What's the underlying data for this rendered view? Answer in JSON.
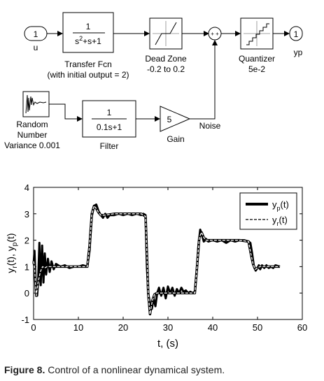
{
  "diagram": {
    "blocks": {
      "inport": {
        "number": "1",
        "label": "u"
      },
      "transfer_fcn": {
        "numerator": "1",
        "denominator": "s",
        "denominator_exp": "2",
        "denominator_rest": "+s+1",
        "label_line1": "Transfer Fcn",
        "label_line2": "(with initial output = 2)"
      },
      "dead_zone": {
        "label_line1": "Dead Zone",
        "label_line2": "-0.2 to 0.2"
      },
      "sum": {
        "signs": "+ +"
      },
      "quantizer": {
        "label_line1": "Quantizer",
        "label_line2": "5e-2"
      },
      "outport": {
        "number": "1",
        "label": "yp"
      },
      "random_number": {
        "label_line1": "Random",
        "label_line2": "Number",
        "label_line3": "Variance 0.001"
      },
      "filter": {
        "numerator": "1",
        "denominator": "0.1s+1",
        "label": "Filter"
      },
      "gain": {
        "value": "5",
        "label": "Gain"
      },
      "noise_label": "Noise"
    }
  },
  "chart_data": {
    "type": "line",
    "xlabel": "t, (s)",
    "ylabel": "y_r(t), y_p(t)",
    "xlim": [
      0,
      60
    ],
    "ylim": [
      -1,
      4
    ],
    "xticks": [
      "0",
      "10",
      "20",
      "30",
      "40",
      "50",
      "60"
    ],
    "yticks": [
      "-1",
      "0",
      "1",
      "2",
      "3",
      "4"
    ],
    "grid": false,
    "legend": "top-right",
    "series": [
      {
        "name": "y_p(t)",
        "style": "solid-thick",
        "x": [
          0,
          0.2,
          0.5,
          0.8,
          1.0,
          1.3,
          1.6,
          1.9,
          2.2,
          2.5,
          2.8,
          3.2,
          3.6,
          4.0,
          4.5,
          5,
          6,
          7,
          8,
          9,
          10,
          11,
          12,
          12.5,
          13,
          13.5,
          14,
          14.5,
          15,
          15.5,
          16,
          16.5,
          17,
          18,
          19,
          20,
          21,
          22,
          23,
          24,
          24.5,
          25,
          25.3,
          25.6,
          26,
          26.4,
          26.8,
          27.2,
          27.6,
          28,
          28.5,
          29,
          29.5,
          30,
          30.5,
          31,
          31.5,
          32,
          32.5,
          33,
          33.5,
          34,
          34.5,
          35,
          35.5,
          36,
          36.4,
          36.8,
          37.2,
          37.6,
          38,
          38.5,
          39,
          40,
          41,
          42,
          43,
          44,
          45,
          46,
          47,
          48,
          48.4,
          48.8,
          49.2,
          49.6,
          50,
          50.3,
          50.6,
          51,
          51.5,
          52,
          52.5,
          53,
          53.5,
          54,
          55
        ],
        "values": [
          1.1,
          1.6,
          0.2,
          -0.1,
          0.4,
          1.9,
          0.3,
          1.8,
          0.4,
          1.5,
          0.7,
          1.3,
          0.8,
          1.2,
          0.9,
          1.1,
          1.0,
          1.05,
          0.95,
          1.0,
          1.0,
          1.05,
          1.0,
          1.6,
          2.9,
          3.3,
          3.35,
          3.1,
          2.95,
          2.85,
          3.0,
          2.85,
          2.95,
          2.95,
          3.0,
          2.95,
          3.0,
          2.95,
          3.0,
          2.95,
          3.0,
          2.95,
          1.0,
          0.0,
          -0.4,
          -0.6,
          -0.2,
          -0.5,
          0.0,
          0.2,
          -0.1,
          0.2,
          -0.2,
          0.25,
          0.0,
          0.2,
          -0.1,
          0.15,
          0.0,
          0.2,
          0.05,
          0.1,
          0.0,
          0.05,
          0.0,
          0.05,
          0.8,
          1.8,
          2.4,
          2.2,
          1.95,
          2.05,
          1.95,
          2.0,
          1.95,
          2.0,
          1.9,
          2.0,
          1.95,
          2.0,
          2.0,
          1.95,
          1.9,
          1.5,
          1.0,
          0.85,
          0.95,
          1.05,
          0.9,
          1.05,
          0.95,
          1.05,
          0.95,
          1.0,
          0.95,
          1.05,
          1.0
        ]
      },
      {
        "name": "y_r(t)",
        "style": "dashed",
        "x": [
          0,
          0.2,
          0.6,
          1,
          1.5,
          2,
          2.5,
          3,
          4,
          5,
          6,
          8,
          10,
          12,
          12.5,
          13,
          13.5,
          14,
          14.5,
          15,
          16,
          18,
          20,
          22,
          24,
          25,
          25.3,
          25.6,
          26,
          26.5,
          27,
          27.5,
          28,
          29,
          30,
          32,
          34,
          36,
          36.5,
          37,
          37.5,
          38,
          38.5,
          39,
          40,
          42,
          44,
          46,
          48,
          48.5,
          49,
          49.5,
          50,
          50.5,
          51,
          52,
          53,
          54,
          55
        ],
        "values": [
          1.2,
          1.0,
          -0.1,
          0.4,
          0.8,
          1.0,
          0.95,
          1.0,
          1.0,
          1.0,
          1.0,
          1.0,
          1.0,
          1.0,
          1.8,
          3.0,
          3.3,
          3.2,
          3.05,
          2.95,
          2.95,
          3.0,
          3.0,
          3.0,
          3.0,
          2.9,
          1.5,
          0.0,
          -0.8,
          -0.3,
          -0.05,
          0.0,
          0.0,
          0.0,
          0.0,
          0.0,
          0.0,
          0.0,
          1.0,
          2.1,
          2.3,
          2.1,
          2.0,
          2.0,
          2.0,
          2.0,
          2.0,
          2.0,
          1.95,
          1.5,
          1.1,
          0.9,
          0.95,
          1.0,
          1.0,
          1.0,
          1.0,
          1.0,
          1.0
        ]
      }
    ]
  },
  "caption": {
    "label": "Figure 8.",
    "text": " Control of a nonlinear dynamical system."
  }
}
